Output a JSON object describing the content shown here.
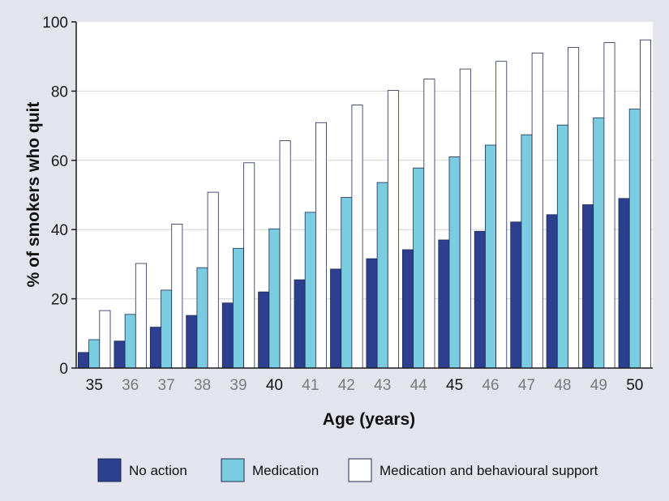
{
  "chart_data": {
    "type": "bar",
    "title": "",
    "xlabel": "Age (years)",
    "ylabel": "% of smokers who quit",
    "ylim": [
      0,
      100
    ],
    "yticks": [
      0,
      20,
      40,
      60,
      80,
      100
    ],
    "grid": true,
    "legend_position": "bottom",
    "categories": [
      "35",
      "36",
      "37",
      "38",
      "39",
      "40",
      "41",
      "42",
      "43",
      "44",
      "45",
      "46",
      "47",
      "48",
      "49",
      "50"
    ],
    "emphasized_categories": [
      "35",
      "40",
      "45",
      "50"
    ],
    "series": [
      {
        "name": "No action",
        "color": "#2d3f8f",
        "values": [
          4.5,
          7.8,
          11.8,
          15.2,
          18.8,
          22.0,
          25.5,
          28.6,
          31.6,
          34.2,
          37.0,
          39.5,
          42.2,
          44.3,
          47.2,
          49.0
        ]
      },
      {
        "name": "Medication",
        "color": "#7acde0",
        "values": [
          8.2,
          15.5,
          22.5,
          29.0,
          34.6,
          40.2,
          45.0,
          49.3,
          53.6,
          57.8,
          61.0,
          64.4,
          67.4,
          70.2,
          72.3,
          74.8
        ]
      },
      {
        "name": "Medication and behavioural support",
        "color": "#ffffff",
        "values": [
          16.6,
          30.2,
          41.6,
          50.8,
          59.3,
          65.7,
          70.9,
          76.0,
          80.2,
          83.5,
          86.4,
          88.6,
          91.0,
          92.6,
          94.0,
          94.8
        ]
      }
    ],
    "colors": {
      "plot_background": "#ffffff",
      "outer_background": "#e3e4ee",
      "emphasized_tick": "#111111",
      "muted_tick": "#7a7a7a",
      "bar_stroke": "#1f2a55"
    }
  }
}
